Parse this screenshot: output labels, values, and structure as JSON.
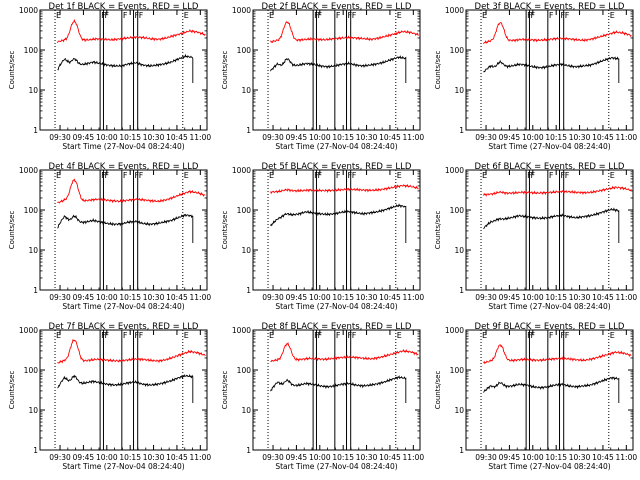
{
  "axis": {
    "ylabel": "Counts/sec",
    "xlabel": "Start Time (27-Nov-04 08:24:40)",
    "ylim": [
      1,
      1000
    ],
    "yscale": "log",
    "yticks": [
      {
        "value": 1,
        "label": "1"
      },
      {
        "value": 10,
        "label": "10"
      },
      {
        "value": 100,
        "label": "100"
      },
      {
        "value": 1000,
        "label": "1000"
      }
    ]
  },
  "colors": {
    "events": "#000000",
    "lld": "#ff0000",
    "markers": "#000000"
  },
  "chart_data": [
    {
      "type": "line",
      "detector": "1f",
      "title": "Det 1f BLACK = Events, RED = LLD",
      "xtick_labels": [
        "09:30",
        "09:45",
        "10:00",
        "10:15",
        "10:30",
        "10:45",
        "11:00"
      ],
      "vlines": [
        {
          "x": 0.09,
          "style": "dotted",
          "label": "E"
        },
        {
          "x": 0.855,
          "style": "dotted",
          "label": "E"
        },
        {
          "x": 0.36,
          "style": "solid",
          "label": "F"
        },
        {
          "x": 0.38,
          "style": "solid",
          "label": "F"
        },
        {
          "x": 0.49,
          "style": "solid",
          "label": "F"
        },
        {
          "x": 0.56,
          "style": "solid",
          "label": "F"
        },
        {
          "x": 0.585,
          "style": "solid",
          "label": "F"
        }
      ],
      "series": [
        {
          "name": "Events",
          "color": "#000000",
          "start": 0.105,
          "end": 0.915,
          "base": [
            32,
            60,
            40,
            42,
            45,
            50,
            46,
            42,
            40,
            40,
            45,
            48,
            42,
            40,
            42,
            45,
            50,
            60,
            70,
            65
          ],
          "spike": {
            "x": 0.205,
            "peak": 60
          }
        },
        {
          "name": "LLD",
          "color": "#ff0000",
          "start": 0.105,
          "end": 0.99,
          "base": [
            160,
            180,
            170,
            175,
            180,
            190,
            185,
            180,
            190,
            200,
            210,
            205,
            190,
            185,
            200,
            230,
            260,
            300,
            280,
            240
          ],
          "spike": {
            "x": 0.205,
            "peak": 520
          }
        }
      ]
    },
    {
      "type": "line",
      "detector": "2f",
      "title": "Det 2f BLACK = Events, RED = LLD",
      "xtick_labels": [
        "09:30",
        "09:45",
        "10:00",
        "10:15",
        "10:30",
        "10:45",
        "11:00"
      ],
      "vlines": [
        {
          "x": 0.09,
          "style": "dotted",
          "label": "E"
        },
        {
          "x": 0.855,
          "style": "dotted",
          "label": "E"
        },
        {
          "x": 0.36,
          "style": "solid",
          "label": "F"
        },
        {
          "x": 0.38,
          "style": "solid",
          "label": "F"
        },
        {
          "x": 0.49,
          "style": "solid",
          "label": "F"
        },
        {
          "x": 0.56,
          "style": "solid",
          "label": "F"
        },
        {
          "x": 0.585,
          "style": "solid",
          "label": "F"
        }
      ],
      "series": [
        {
          "name": "Events",
          "color": "#000000",
          "start": 0.105,
          "end": 0.915,
          "base": [
            30,
            45,
            35,
            40,
            42,
            46,
            44,
            40,
            38,
            40,
            44,
            46,
            42,
            40,
            42,
            45,
            50,
            58,
            66,
            62
          ],
          "spike": {
            "x": 0.205,
            "peak": 60
          }
        },
        {
          "name": "LLD",
          "color": "#ff0000",
          "start": 0.105,
          "end": 0.99,
          "base": [
            160,
            175,
            170,
            172,
            180,
            188,
            185,
            180,
            190,
            198,
            205,
            200,
            192,
            185,
            200,
            225,
            255,
            290,
            275,
            240
          ],
          "spike": {
            "x": 0.205,
            "peak": 500
          }
        }
      ]
    },
    {
      "type": "line",
      "detector": "3f",
      "title": "Det 3f BLACK = Events, RED = LLD",
      "xtick_labels": [
        "09:30",
        "09:45",
        "10:00",
        "10:15",
        "10:30",
        "10:45",
        "11:00"
      ],
      "vlines": [
        {
          "x": 0.09,
          "style": "dotted",
          "label": "E"
        },
        {
          "x": 0.855,
          "style": "dotted",
          "label": "E"
        },
        {
          "x": 0.36,
          "style": "solid",
          "label": "F"
        },
        {
          "x": 0.38,
          "style": "solid",
          "label": "F"
        },
        {
          "x": 0.49,
          "style": "solid",
          "label": "F"
        },
        {
          "x": 0.56,
          "style": "solid",
          "label": "F"
        },
        {
          "x": 0.585,
          "style": "solid",
          "label": "F"
        }
      ],
      "series": [
        {
          "name": "Events",
          "color": "#000000",
          "start": 0.105,
          "end": 0.915,
          "base": [
            28,
            40,
            34,
            38,
            40,
            44,
            42,
            38,
            36,
            38,
            42,
            44,
            40,
            38,
            40,
            42,
            48,
            56,
            64,
            60
          ],
          "spike": {
            "x": 0.205,
            "peak": 50
          }
        },
        {
          "name": "LLD",
          "color": "#ff0000",
          "start": 0.105,
          "end": 0.99,
          "base": [
            150,
            170,
            165,
            170,
            175,
            185,
            180,
            175,
            180,
            190,
            195,
            190,
            180,
            175,
            190,
            215,
            245,
            280,
            265,
            230
          ],
          "spike": {
            "x": 0.205,
            "peak": 480
          }
        }
      ]
    },
    {
      "type": "line",
      "detector": "4f",
      "title": "Det 4f BLACK = Events, RED = LLD",
      "xtick_labels": [
        "09:30",
        "09:45",
        "10:00",
        "10:15",
        "10:30",
        "10:45",
        "11:00"
      ],
      "vlines": [
        {
          "x": 0.09,
          "style": "dotted",
          "label": "E"
        },
        {
          "x": 0.855,
          "style": "dotted",
          "label": "E"
        },
        {
          "x": 0.36,
          "style": "solid",
          "label": "F"
        },
        {
          "x": 0.38,
          "style": "solid",
          "label": "F"
        },
        {
          "x": 0.49,
          "style": "solid",
          "label": "F"
        },
        {
          "x": 0.56,
          "style": "solid",
          "label": "F"
        },
        {
          "x": 0.585,
          "style": "solid",
          "label": "F"
        }
      ],
      "series": [
        {
          "name": "Events",
          "color": "#000000",
          "start": 0.105,
          "end": 0.915,
          "base": [
            35,
            70,
            45,
            48,
            50,
            55,
            50,
            46,
            44,
            45,
            50,
            52,
            46,
            44,
            46,
            50,
            55,
            65,
            75,
            70
          ],
          "spike": {
            "x": 0.205,
            "peak": 70
          }
        },
        {
          "name": "LLD",
          "color": "#ff0000",
          "start": 0.105,
          "end": 0.99,
          "base": [
            150,
            180,
            160,
            165,
            175,
            185,
            180,
            170,
            165,
            175,
            185,
            180,
            170,
            165,
            180,
            210,
            250,
            290,
            270,
            230
          ],
          "spike": {
            "x": 0.205,
            "peak": 560
          }
        }
      ]
    },
    {
      "type": "line",
      "detector": "5f",
      "title": "Det 5f BLACK = Events, RED = LLD",
      "xtick_labels": [
        "09:30",
        "09:45",
        "10:00",
        "10:15",
        "10:30",
        "10:45",
        "11:00"
      ],
      "vlines": [
        {
          "x": 0.09,
          "style": "dotted",
          "label": "E"
        },
        {
          "x": 0.855,
          "style": "dotted",
          "label": "E"
        },
        {
          "x": 0.36,
          "style": "solid",
          "label": "F"
        },
        {
          "x": 0.38,
          "style": "solid",
          "label": "F"
        },
        {
          "x": 0.49,
          "style": "solid",
          "label": "F"
        },
        {
          "x": 0.56,
          "style": "solid",
          "label": "F"
        },
        {
          "x": 0.585,
          "style": "solid",
          "label": "F"
        }
      ],
      "series": [
        {
          "name": "Events",
          "color": "#000000",
          "start": 0.105,
          "end": 0.915,
          "base": [
            40,
            60,
            70,
            75,
            80,
            90,
            85,
            80,
            78,
            80,
            88,
            92,
            85,
            80,
            85,
            90,
            100,
            115,
            130,
            120
          ],
          "spike": {
            "x": 0.205,
            "peak": 80
          }
        },
        {
          "name": "LLD",
          "color": "#ff0000",
          "start": 0.105,
          "end": 0.99,
          "base": [
            280,
            290,
            300,
            300,
            305,
            315,
            310,
            305,
            310,
            320,
            330,
            325,
            315,
            310,
            320,
            345,
            375,
            410,
            390,
            350
          ],
          "spike": {
            "x": 0.205,
            "peak": 320
          }
        }
      ]
    },
    {
      "type": "line",
      "detector": "6f",
      "title": "Det 6f BLACK = Events, RED = LLD",
      "xtick_labels": [
        "09:30",
        "09:45",
        "10:00",
        "10:15",
        "10:30",
        "10:45",
        "11:00"
      ],
      "vlines": [
        {
          "x": 0.09,
          "style": "dotted",
          "label": "E"
        },
        {
          "x": 0.855,
          "style": "dotted",
          "label": "E"
        },
        {
          "x": 0.36,
          "style": "solid",
          "label": "F"
        },
        {
          "x": 0.38,
          "style": "solid",
          "label": "F"
        },
        {
          "x": 0.49,
          "style": "solid",
          "label": "F"
        },
        {
          "x": 0.56,
          "style": "solid",
          "label": "F"
        },
        {
          "x": 0.585,
          "style": "solid",
          "label": "F"
        }
      ],
      "series": [
        {
          "name": "Events",
          "color": "#000000",
          "start": 0.105,
          "end": 0.915,
          "base": [
            35,
            50,
            55,
            60,
            65,
            72,
            68,
            64,
            62,
            64,
            70,
            74,
            68,
            64,
            68,
            72,
            80,
            92,
            104,
            96
          ],
          "spike": {
            "x": 0.205,
            "peak": 60
          }
        },
        {
          "name": "LLD",
          "color": "#ff0000",
          "start": 0.105,
          "end": 0.99,
          "base": [
            240,
            250,
            260,
            262,
            268,
            278,
            272,
            266,
            270,
            280,
            290,
            286,
            276,
            270,
            280,
            305,
            335,
            370,
            350,
            310
          ],
          "spike": {
            "x": 0.205,
            "peak": 280
          }
        }
      ]
    },
    {
      "type": "line",
      "detector": "7f",
      "title": "Det 7f BLACK = Events, RED = LLD",
      "xtick_labels": [
        "09:30",
        "09:45",
        "10:00",
        "10:15",
        "10:30",
        "10:45",
        "11:00"
      ],
      "vlines": [
        {
          "x": 0.09,
          "style": "dotted",
          "label": "E"
        },
        {
          "x": 0.855,
          "style": "dotted",
          "label": "E"
        },
        {
          "x": 0.36,
          "style": "solid",
          "label": "F"
        },
        {
          "x": 0.38,
          "style": "solid",
          "label": "F"
        },
        {
          "x": 0.49,
          "style": "solid",
          "label": "F"
        },
        {
          "x": 0.56,
          "style": "solid",
          "label": "F"
        },
        {
          "x": 0.585,
          "style": "solid",
          "label": "F"
        }
      ],
      "series": [
        {
          "name": "Events",
          "color": "#000000",
          "start": 0.105,
          "end": 0.915,
          "base": [
            34,
            65,
            42,
            45,
            48,
            52,
            48,
            44,
            42,
            44,
            48,
            50,
            44,
            42,
            44,
            48,
            54,
            64,
            72,
            68
          ],
          "spike": {
            "x": 0.205,
            "peak": 70
          }
        },
        {
          "name": "LLD",
          "color": "#ff0000",
          "start": 0.105,
          "end": 0.99,
          "base": [
            150,
            175,
            160,
            165,
            175,
            185,
            180,
            172,
            168,
            178,
            188,
            184,
            174,
            168,
            182,
            212,
            250,
            290,
            270,
            232
          ],
          "spike": {
            "x": 0.205,
            "peak": 560
          }
        }
      ]
    },
    {
      "type": "line",
      "detector": "8f",
      "title": "Det 8f BLACK = Events, RED = LLD",
      "xtick_labels": [
        "09:30",
        "09:45",
        "10:00",
        "10:15",
        "10:30",
        "10:45",
        "11:00"
      ],
      "vlines": [
        {
          "x": 0.09,
          "style": "dotted",
          "label": "E"
        },
        {
          "x": 0.855,
          "style": "dotted",
          "label": "E"
        },
        {
          "x": 0.36,
          "style": "solid",
          "label": "F"
        },
        {
          "x": 0.38,
          "style": "solid",
          "label": "F"
        },
        {
          "x": 0.49,
          "style": "solid",
          "label": "F"
        },
        {
          "x": 0.56,
          "style": "solid",
          "label": "F"
        },
        {
          "x": 0.585,
          "style": "solid",
          "label": "F"
        }
      ],
      "series": [
        {
          "name": "Events",
          "color": "#000000",
          "start": 0.105,
          "end": 0.915,
          "base": [
            30,
            50,
            38,
            40,
            42,
            46,
            44,
            40,
            38,
            40,
            44,
            46,
            42,
            40,
            42,
            45,
            50,
            58,
            66,
            62
          ],
          "spike": {
            "x": 0.205,
            "peak": 55
          }
        },
        {
          "name": "LLD",
          "color": "#ff0000",
          "start": 0.105,
          "end": 0.99,
          "base": [
            165,
            180,
            175,
            178,
            185,
            195,
            190,
            185,
            195,
            205,
            212,
            206,
            196,
            190,
            205,
            232,
            262,
            300,
            285,
            245
          ],
          "spike": {
            "x": 0.205,
            "peak": 450
          }
        }
      ]
    },
    {
      "type": "line",
      "detector": "9f",
      "title": "Det 9f BLACK = Events, RED = LLD",
      "xtick_labels": [
        "09:30",
        "09:45",
        "10:00",
        "10:15",
        "10:30",
        "10:45",
        "11:00"
      ],
      "vlines": [
        {
          "x": 0.09,
          "style": "dotted",
          "label": "E"
        },
        {
          "x": 0.855,
          "style": "dotted",
          "label": "E"
        },
        {
          "x": 0.36,
          "style": "solid",
          "label": "F"
        },
        {
          "x": 0.38,
          "style": "solid",
          "label": "F"
        },
        {
          "x": 0.49,
          "style": "solid",
          "label": "F"
        },
        {
          "x": 0.56,
          "style": "solid",
          "label": "F"
        },
        {
          "x": 0.585,
          "style": "solid",
          "label": "F"
        }
      ],
      "series": [
        {
          "name": "Events",
          "color": "#000000",
          "start": 0.105,
          "end": 0.915,
          "base": [
            28,
            40,
            34,
            38,
            40,
            44,
            42,
            38,
            36,
            38,
            42,
            44,
            40,
            38,
            40,
            42,
            48,
            56,
            64,
            60
          ],
          "spike": {
            "x": 0.205,
            "peak": 48
          }
        },
        {
          "name": "LLD",
          "color": "#ff0000",
          "start": 0.105,
          "end": 0.99,
          "base": [
            150,
            170,
            165,
            170,
            175,
            185,
            180,
            175,
            180,
            190,
            195,
            190,
            180,
            175,
            190,
            215,
            245,
            280,
            265,
            230
          ],
          "spike": {
            "x": 0.205,
            "peak": 420
          }
        }
      ]
    }
  ]
}
